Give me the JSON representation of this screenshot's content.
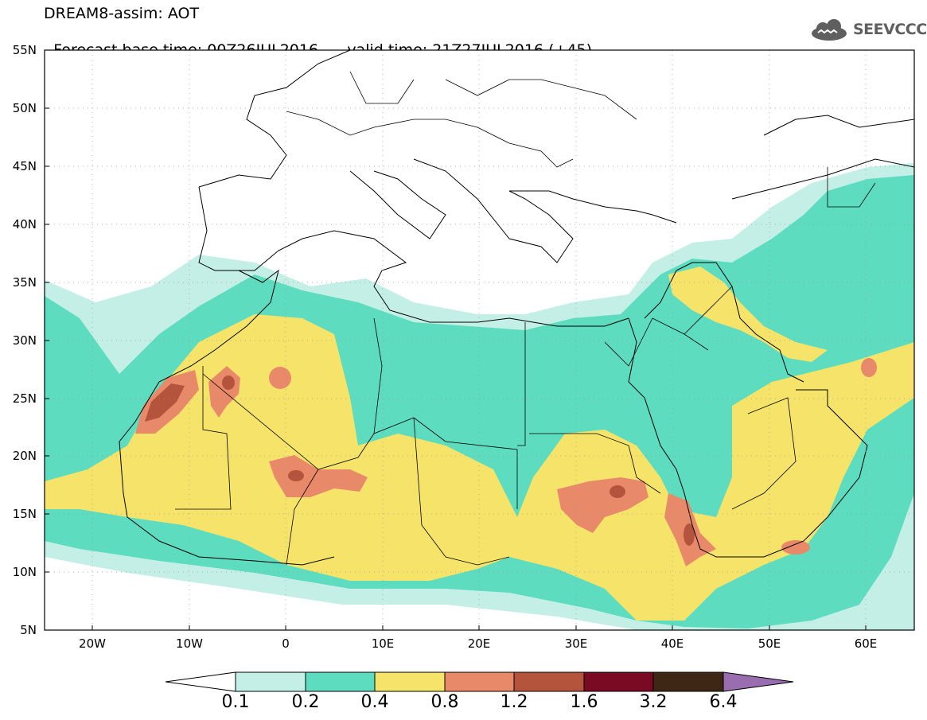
{
  "header": {
    "title_line1": "DREAM8-assim: AOT",
    "base_time_label": "Forecast base time: 00Z26JUL2016",
    "valid_time_label": "valid time: 21Z27JUL2016 (+45)"
  },
  "logo": {
    "text": "SEEVCCC",
    "icon": "cloud-icon"
  },
  "map": {
    "lat_labels": [
      "55N",
      "50N",
      "45N",
      "40N",
      "35N",
      "30N",
      "25N",
      "20N",
      "15N",
      "10N",
      "5N"
    ],
    "lon_labels": [
      "20W",
      "10W",
      "0",
      "10E",
      "20E",
      "30E",
      "40E",
      "50E",
      "60E"
    ],
    "lat_range": [
      5,
      55
    ],
    "lon_range": [
      -25,
      65
    ],
    "grid": "dotted",
    "region": "Saharan dust over North Africa, Mediterranean and Middle East"
  },
  "legend": {
    "levels": [
      "0.1",
      "0.2",
      "0.4",
      "0.8",
      "1.2",
      "1.6",
      "3.2",
      "6.4"
    ],
    "colors": [
      "#ffffff",
      "#c4efe6",
      "#5ddcbf",
      "#f6e46a",
      "#e8896a",
      "#b4543c",
      "#7a0a24",
      "#3e2714",
      "#9a6cb0"
    ]
  },
  "colors": {
    "level_01": "#c4efe6",
    "level_02": "#5ddcbf",
    "level_04": "#f6e46a",
    "level_08": "#e8896a",
    "level_12": "#b4543c",
    "level_16": "#7a0a24"
  }
}
